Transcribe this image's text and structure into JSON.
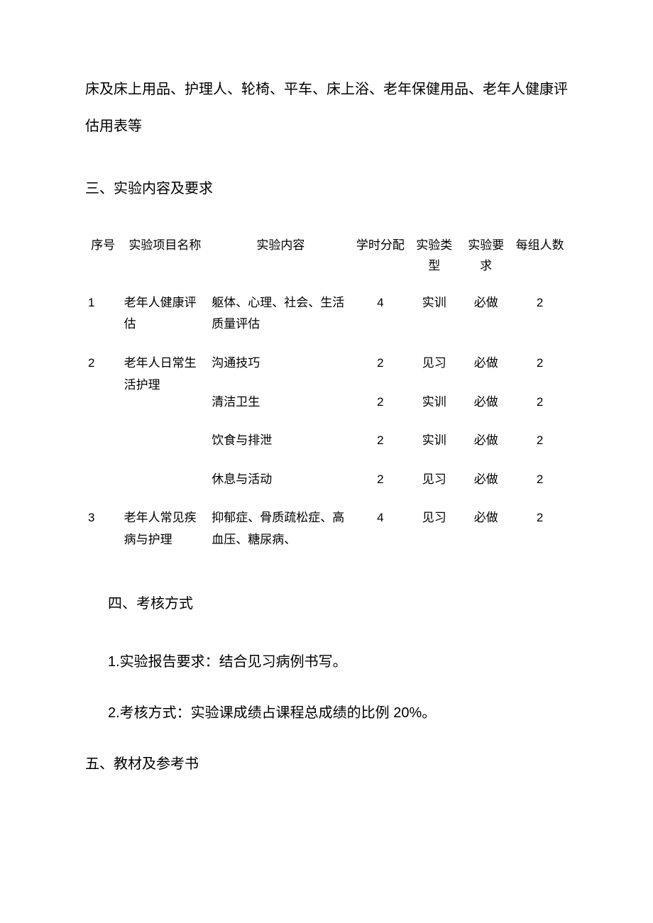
{
  "intro_text": "床及床上用品、护理人、轮椅、平车、床上浴、老年保健用品、老年人健康评估用表等",
  "sections": {
    "s3_heading": "三、实验内容及要求",
    "s4_heading": "四、考核方式",
    "s4_item1": "1.实验报告要求：结合见习病例书写。",
    "s4_item2": "2.考核方式：实验课成绩占课程总成绩的比例 20%。",
    "s5_heading": "五、教材及参考书"
  },
  "table": {
    "headers": {
      "seq": "序号",
      "name": "实验项目名称",
      "content": "实验内容",
      "hours": "学时分配",
      "type": "实验类型",
      "req": "实验要求",
      "group": "每组人数"
    },
    "rows": [
      {
        "seq": "1",
        "name": "老年人健康评估",
        "content": "躯体、心理、社会、生活质量评估",
        "hours": "4",
        "type": "实训",
        "req": "必做",
        "group": "2"
      },
      {
        "seq": "2",
        "name": "老年人日常生活护理",
        "content": "沟通技巧",
        "hours": "2",
        "type": "见习",
        "req": "必做",
        "group": "2"
      },
      {
        "seq": "",
        "name": "",
        "content": "清洁卫生",
        "hours": "2",
        "type": "实训",
        "req": "必做",
        "group": "2"
      },
      {
        "seq": "",
        "name": "",
        "content": "饮食与排泄",
        "hours": "2",
        "type": "实训",
        "req": "必做",
        "group": "2"
      },
      {
        "seq": "",
        "name": "",
        "content": "休息与活动",
        "hours": "2",
        "type": "见习",
        "req": "必做",
        "group": "2"
      },
      {
        "seq": "3",
        "name": "老年人常见疾病与护理",
        "content": "抑郁症、骨质疏松症、高血压、糖尿病、",
        "hours": "4",
        "type": "见习",
        "req": "必做",
        "group": "2"
      }
    ]
  }
}
